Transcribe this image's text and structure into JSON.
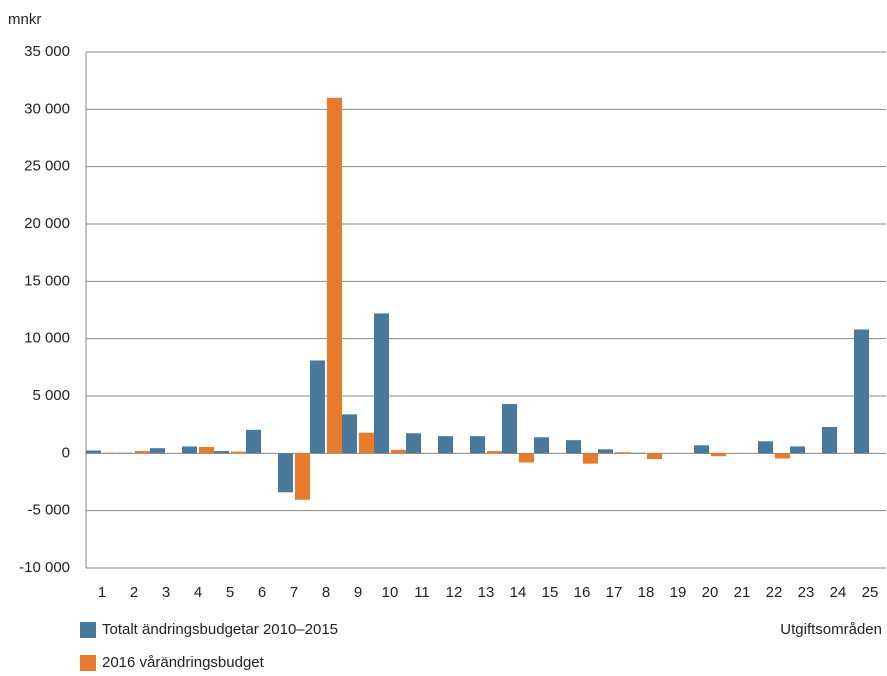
{
  "chart_data": {
    "type": "bar",
    "y_label": "mnkr",
    "x_label": "Utgiftsområden",
    "categories": [
      "1",
      "2",
      "3",
      "4",
      "5",
      "6",
      "7",
      "8",
      "9",
      "10",
      "11",
      "12",
      "13",
      "14",
      "15",
      "16",
      "17",
      "18",
      "19",
      "20",
      "21",
      "22",
      "23",
      "24",
      "25"
    ],
    "series": [
      {
        "name": "Totalt ändringsbudgetar 2010–2015",
        "color": "#4a7a9b",
        "values": [
          250,
          50,
          450,
          600,
          200,
          2050,
          -3400,
          8100,
          3400,
          12200,
          1750,
          1500,
          1500,
          4300,
          1400,
          1150,
          350,
          50,
          0,
          700,
          0,
          1050,
          600,
          2300,
          10800
        ]
      },
      {
        "name": "2016 vårändringsbudget",
        "color": "#e87a2a",
        "values": [
          50,
          200,
          0,
          550,
          150,
          0,
          -4050,
          31000,
          1800,
          300,
          0,
          0,
          200,
          -800,
          0,
          -900,
          100,
          -500,
          0,
          -250,
          0,
          -450,
          0,
          0,
          0
        ]
      }
    ],
    "ylim": [
      -10000,
      35000
    ],
    "yticks": [
      {
        "value": -10000,
        "label": "-10 000"
      },
      {
        "value": -5000,
        "label": "-5 000"
      },
      0,
      {
        "value": 5000,
        "label": "5 000"
      },
      {
        "value": 10000,
        "label": "10 000"
      },
      {
        "value": 15000,
        "label": "15 000"
      },
      {
        "value": 20000,
        "label": "20 000"
      },
      {
        "value": 25000,
        "label": "25 000"
      },
      {
        "value": 30000,
        "label": "30 000"
      },
      {
        "value": 35000,
        "label": "35 000"
      }
    ],
    "grid": true
  }
}
